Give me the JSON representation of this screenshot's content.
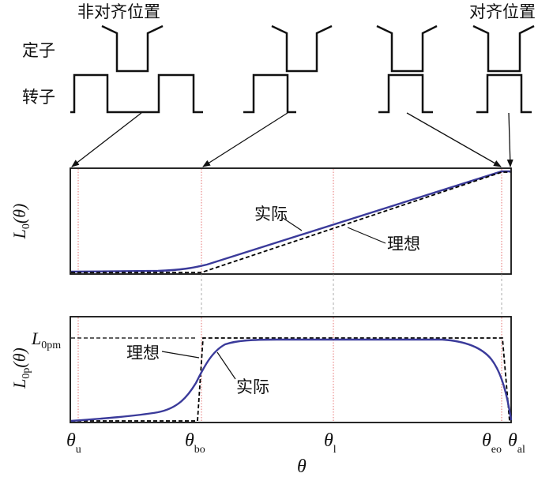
{
  "labels": {
    "misaligned": "非对齐位置",
    "aligned": "对齐位置",
    "stator": "定子",
    "rotor": "转子",
    "actual_top": "实际",
    "ideal_top": "理想",
    "actual_bottom": "实际",
    "ideal_bottom": "理想"
  },
  "axes": {
    "top_ylabel_main": "L",
    "top_ylabel_sub": "0",
    "top_ylabel_arg": "(θ)",
    "bottom_ylabel_main": "L",
    "bottom_ylabel_sub": "0p",
    "bottom_ylabel_arg": "(θ)",
    "level_main": "L",
    "level_sub": "0pm",
    "xlabel": "θ",
    "ticks": [
      {
        "main": "θ",
        "sub": "u"
      },
      {
        "main": "θ",
        "sub": "bo"
      },
      {
        "main": "θ",
        "sub": "l"
      },
      {
        "main": "θ",
        "sub": "eo"
      },
      {
        "main": "θ",
        "sub": "al"
      }
    ]
  },
  "colors": {
    "actual": "#3a3a9a",
    "ideal": "#000000",
    "marker": "#e05050"
  }
}
